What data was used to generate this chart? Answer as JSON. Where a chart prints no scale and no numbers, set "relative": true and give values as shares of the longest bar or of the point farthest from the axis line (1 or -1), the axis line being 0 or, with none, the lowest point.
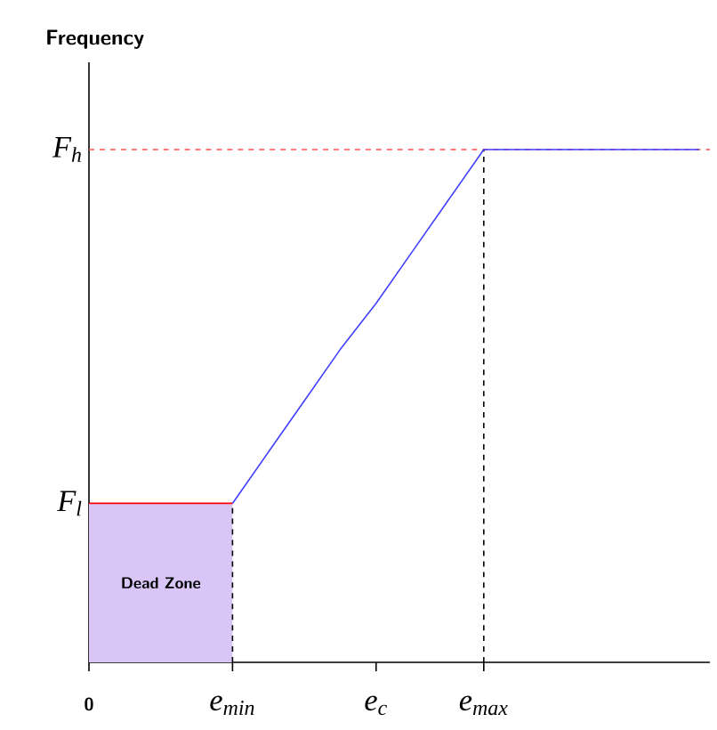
{
  "chart_data": {
    "type": "line",
    "ylabel": "Frequency",
    "relative": true,
    "categories": [
      "0",
      null,
      null,
      null,
      "e$_{min}$",
      null,
      null,
      null,
      "e$_{c}$",
      null,
      null,
      "e$_{max}$",
      null,
      null,
      null,
      null,
      null,
      null
    ],
    "series": [
      {
        "type": "area",
        "name": "Dead Zone",
        "color": "#d9c6f7",
        "values": [
          0.31,
          0.31,
          0.31,
          0.31,
          0.31,
          null,
          null,
          null,
          null,
          null,
          null,
          null,
          null,
          null,
          null,
          null,
          null,
          null
        ]
      },
      {
        "color": "#ff0000",
        "values": [
          0.31,
          0.31,
          0.31,
          0.31,
          0.31,
          null,
          null,
          null,
          null,
          null,
          null,
          null,
          null,
          null,
          null,
          null,
          null,
          null
        ]
      },
      {
        "color": "#4040ff",
        "values": [
          null,
          null,
          null,
          null,
          0.31,
          0.41,
          0.51,
          0.61,
          0.7,
          0.8,
          0.9,
          1,
          1,
          1,
          1,
          1,
          1,
          1
        ]
      }
    ],
    "ref_lines": [
      {
        "axis": "y",
        "value": 1,
        "label": "F$_{h}$",
        "color": "#ff5050",
        "line_style": "dashed"
      },
      {
        "axis": "x",
        "value": "e$_{min}$",
        "color": "#000000",
        "line_style": "dashed"
      },
      {
        "axis": "x",
        "value": "e$_{max}$",
        "color": "#000000",
        "line_style": "dashed"
      }
    ],
    "annotations": [
      {
        "text": "F$_{l}$",
        "x": "0",
        "y": 0.31
      }
    ]
  }
}
